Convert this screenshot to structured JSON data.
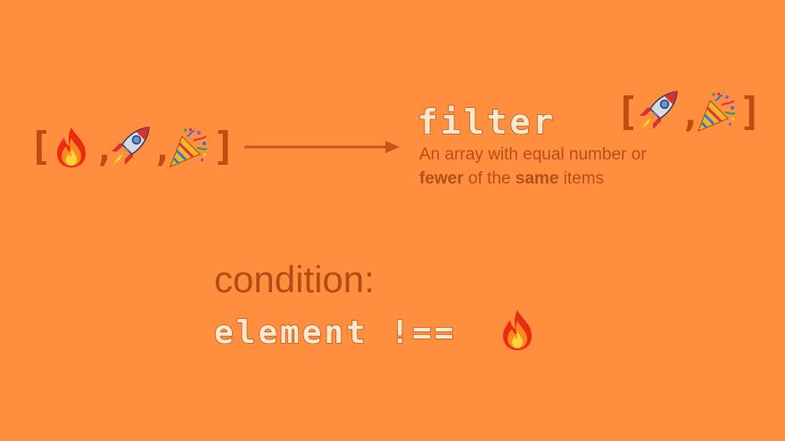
{
  "input_array": {
    "open_bracket": "[",
    "close_bracket": "]",
    "separator": ",",
    "items": [
      "fire",
      "rocket",
      "party-popper"
    ]
  },
  "method": {
    "name": "filter",
    "description_line1": "An array with equal number or",
    "description_line2_parts": [
      "fewer",
      " of the ",
      "same",
      " items"
    ]
  },
  "output_array": {
    "open_bracket": "[",
    "close_bracket": "]",
    "separator": ",",
    "items": [
      "rocket",
      "party-popper"
    ]
  },
  "condition": {
    "label": "condition:",
    "expression": "element !=="
  },
  "colors": {
    "background": "#ff8f3f",
    "bracket": "#bf4d12",
    "text": "#b5501a"
  }
}
